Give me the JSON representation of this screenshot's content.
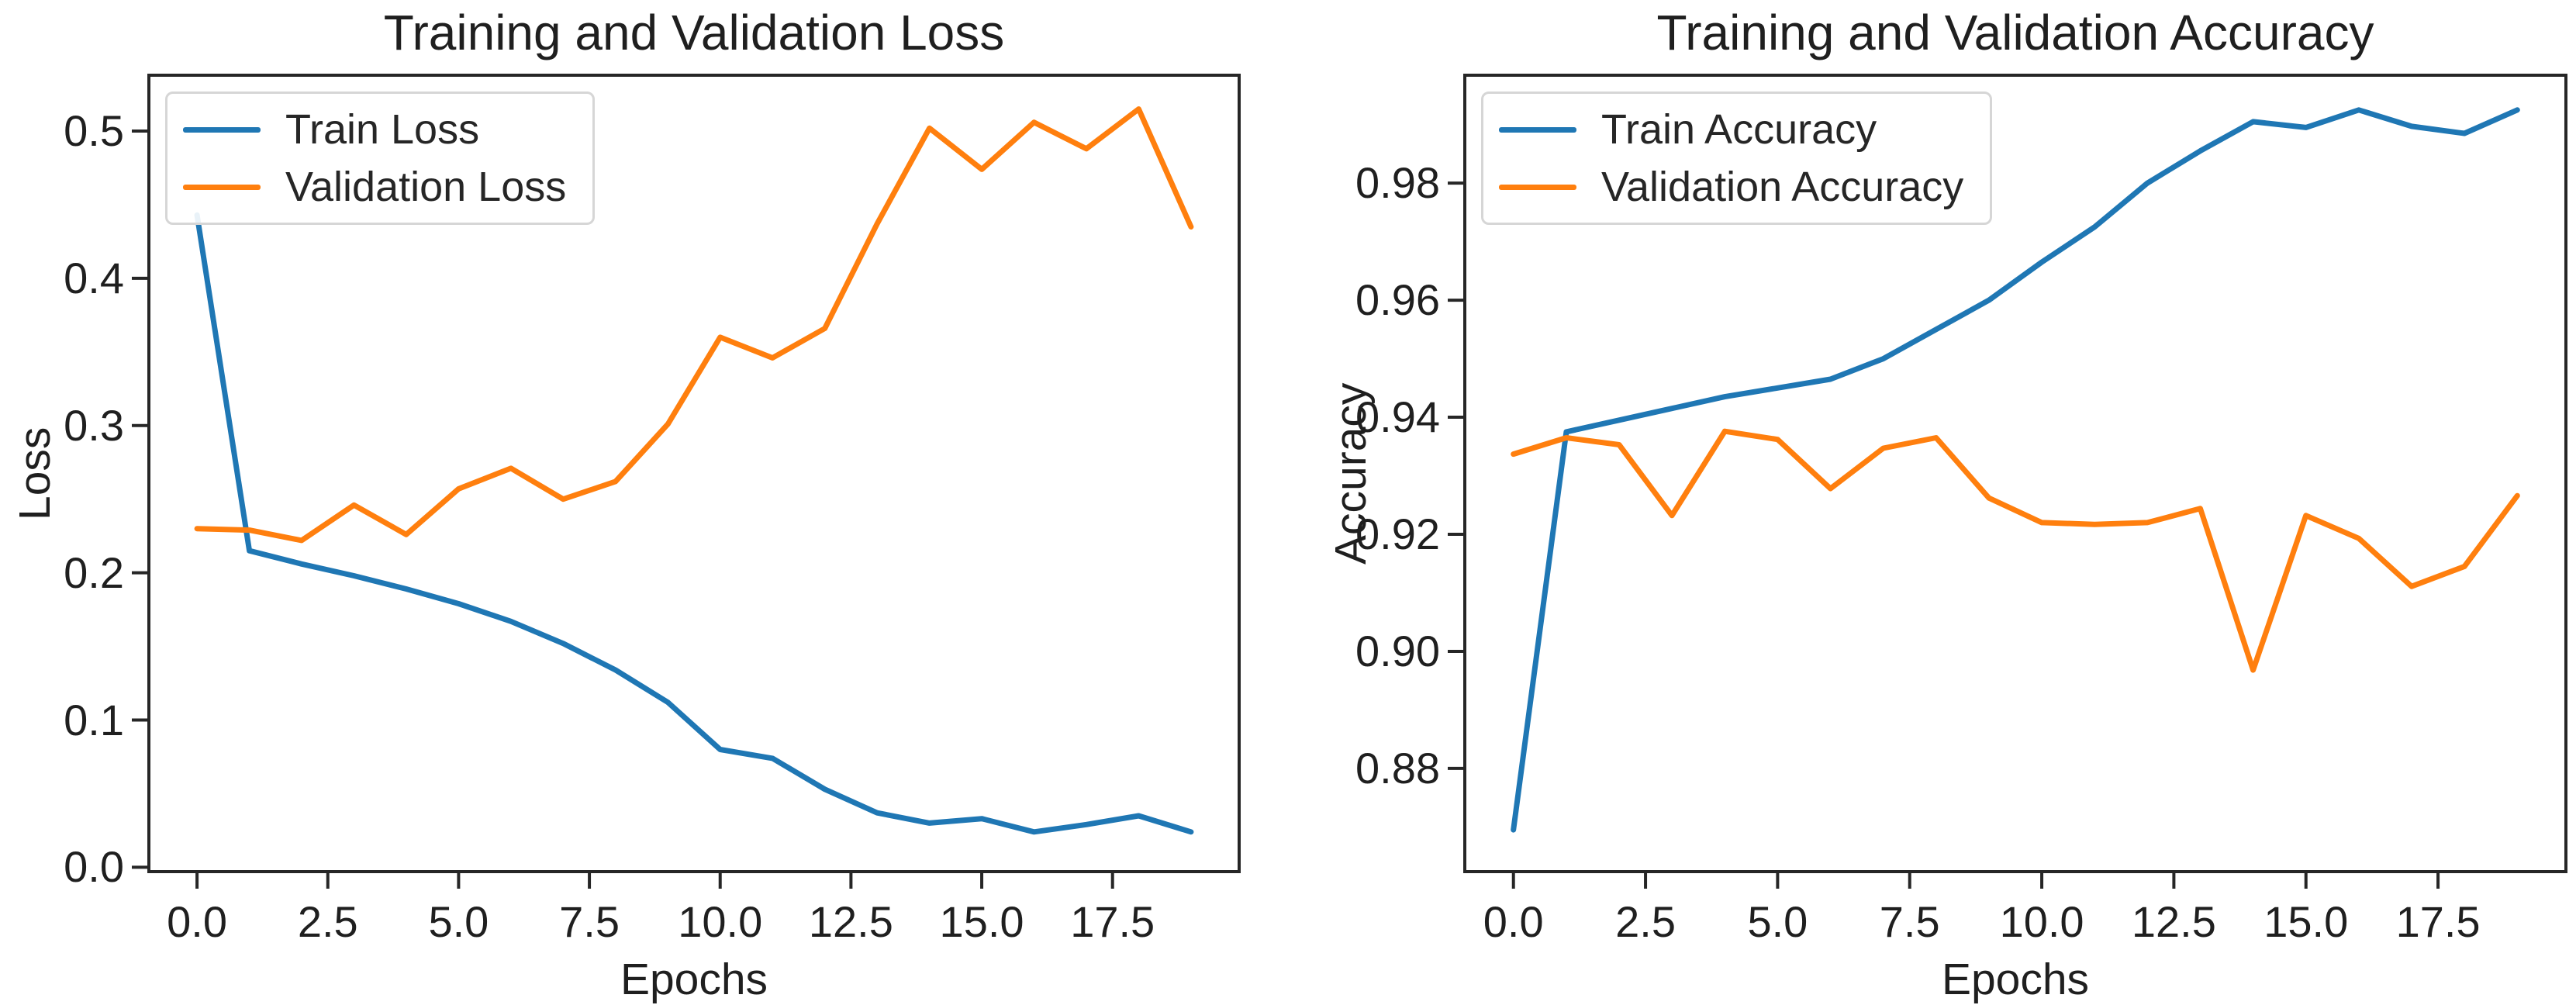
{
  "figure": {
    "background": "#ffffff"
  },
  "colors": {
    "train": "#1f77b4",
    "validation": "#ff7f0e",
    "axis": "#262626",
    "text": "#1f1f1f",
    "legend_border": "#d6d6d6"
  },
  "chart_data": [
    {
      "type": "line",
      "title": "Training and Validation Loss",
      "xlabel": "Epochs",
      "ylabel": "Loss",
      "x": [
        0,
        1,
        2,
        3,
        4,
        5,
        6,
        7,
        8,
        9,
        10,
        11,
        12,
        13,
        14,
        15,
        16,
        17,
        18,
        19
      ],
      "series": [
        {
          "name": "Train Loss",
          "color_key": "train",
          "values": [
            0.443,
            0.215,
            0.206,
            0.198,
            0.189,
            0.179,
            0.167,
            0.152,
            0.134,
            0.112,
            0.08,
            0.074,
            0.053,
            0.037,
            0.03,
            0.033,
            0.024,
            0.029,
            0.035,
            0.024
          ]
        },
        {
          "name": "Validation Loss",
          "color_key": "validation",
          "values": [
            0.23,
            0.229,
            0.222,
            0.246,
            0.226,
            0.257,
            0.271,
            0.25,
            0.262,
            0.301,
            0.36,
            0.346,
            0.366,
            0.437,
            0.502,
            0.474,
            0.506,
            0.488,
            0.515,
            0.435
          ]
        }
      ],
      "xlim": [
        -0.95,
        19.95
      ],
      "ylim": [
        -0.004,
        0.539
      ],
      "x_ticks": [
        0,
        2.5,
        5,
        7.5,
        10,
        12.5,
        15,
        17.5
      ],
      "x_tick_labels": [
        "0.0",
        "2.5",
        "5.0",
        "7.5",
        "10.0",
        "12.5",
        "15.0",
        "17.5"
      ],
      "y_ticks": [
        0.0,
        0.1,
        0.2,
        0.3,
        0.4,
        0.5
      ],
      "y_tick_labels": [
        "0.0",
        "0.1",
        "0.2",
        "0.3",
        "0.4",
        "0.5"
      ],
      "legend_position": "upper-left",
      "grid": false
    },
    {
      "type": "line",
      "title": "Training and Validation Accuracy",
      "xlabel": "Epochs",
      "ylabel": "Accuracy",
      "x": [
        0,
        1,
        2,
        3,
        4,
        5,
        6,
        7,
        8,
        9,
        10,
        11,
        12,
        13,
        14,
        15,
        16,
        17,
        18,
        19
      ],
      "series": [
        {
          "name": "Train Accuracy",
          "color_key": "train",
          "values": [
            0.8695,
            0.9375,
            0.9395,
            0.9415,
            0.9435,
            0.945,
            0.9465,
            0.95,
            0.955,
            0.96,
            0.9665,
            0.9725,
            0.98,
            0.9855,
            0.9905,
            0.9895,
            0.9925,
            0.9897,
            0.9885,
            0.9925
          ]
        },
        {
          "name": "Validation Accuracy",
          "color_key": "validation",
          "values": [
            0.9337,
            0.9365,
            0.9353,
            0.9232,
            0.9376,
            0.9362,
            0.9278,
            0.9347,
            0.9365,
            0.9262,
            0.922,
            0.9217,
            0.922,
            0.9244,
            0.8968,
            0.9232,
            0.9193,
            0.9111,
            0.9145,
            0.9266
          ]
        }
      ],
      "xlim": [
        -0.95,
        19.95
      ],
      "ylim": [
        0.8621,
        0.9987
      ],
      "x_ticks": [
        0,
        2.5,
        5,
        7.5,
        10,
        12.5,
        15,
        17.5
      ],
      "x_tick_labels": [
        "0.0",
        "2.5",
        "5.0",
        "7.5",
        "10.0",
        "12.5",
        "15.0",
        "17.5"
      ],
      "y_ticks": [
        0.88,
        0.9,
        0.92,
        0.94,
        0.96,
        0.98
      ],
      "y_tick_labels": [
        "0.88",
        "0.90",
        "0.92",
        "0.94",
        "0.96",
        "0.98"
      ],
      "legend_position": "upper-left",
      "grid": false
    }
  ]
}
